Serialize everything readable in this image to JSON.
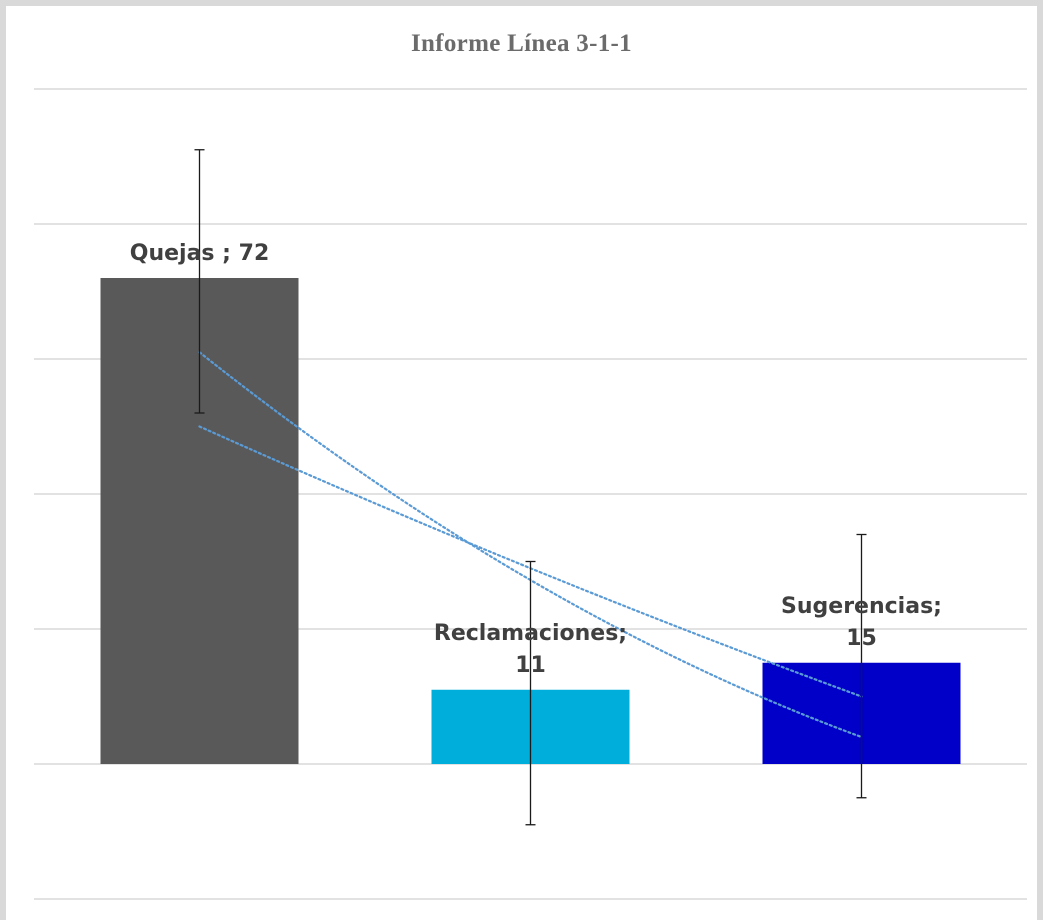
{
  "chart_data": {
    "type": "bar",
    "title": "Informe Línea 3-1-1",
    "categories": [
      "Quejas",
      "Reclamaciones",
      "Sugerencias"
    ],
    "values": [
      72,
      11,
      15
    ],
    "data_labels": [
      [
        "Quejas ; 72"
      ],
      [
        "Reclamaciones;",
        "11"
      ],
      [
        "Sugerencias;",
        "15"
      ]
    ],
    "bar_colors": [
      "#595959",
      "#00aedb",
      "#0000c8"
    ],
    "ylim": [
      -20,
      100
    ],
    "gridline_step": 20,
    "grid": true,
    "legend": "none",
    "axis_tick_labels_shown": false,
    "error_bars": [
      {
        "low": 52,
        "high": 91
      },
      {
        "low": -9,
        "high": 30
      },
      {
        "low": -5,
        "high": 34
      }
    ],
    "trendlines": [
      {
        "style": "dotted",
        "color": "#5b9bd5",
        "points": [
          [
            0,
            61
          ],
          [
            1,
            22
          ],
          [
            2,
            4
          ]
        ]
      },
      {
        "style": "dotted",
        "color": "#5b9bd5",
        "points": [
          [
            0,
            50
          ],
          [
            1,
            28
          ],
          [
            2,
            10
          ]
        ]
      }
    ]
  }
}
